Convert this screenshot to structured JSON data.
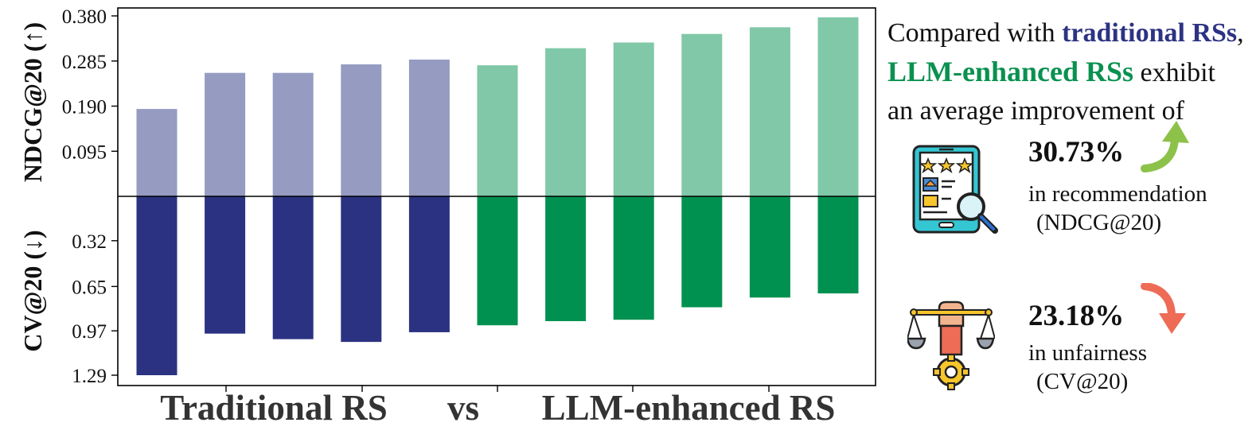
{
  "chart_data": {
    "type": "bar",
    "groups": [
      "Traditional RS",
      "vs",
      "LLM-enhanced RS"
    ],
    "series": [
      {
        "axis_label": "NDCG@20 (↑)",
        "direction": "up",
        "ticks": [
          "0.095",
          "0.190",
          "0.285",
          "0.380"
        ],
        "ylim": [
          0,
          0.38
        ],
        "values": [
          0.184,
          0.26,
          0.26,
          0.278,
          0.288,
          0.276,
          0.312,
          0.324,
          0.342,
          0.356,
          0.377
        ]
      },
      {
        "axis_label": "CV@20 (↓)",
        "direction": "down",
        "ticks": [
          "0.32",
          "0.65",
          "0.97",
          "1.29"
        ],
        "ylim": [
          0,
          1.29
        ],
        "values": [
          1.29,
          0.99,
          1.03,
          1.05,
          0.98,
          0.93,
          0.9,
          0.89,
          0.8,
          0.73,
          0.7
        ]
      }
    ],
    "traditional_count": 5,
    "colors": {
      "traditional_top": "#959bc1",
      "traditional_bottom": "#2b3281",
      "llm_top": "#80c8a7",
      "llm_bottom": "#009150"
    }
  },
  "summary": {
    "line1_prefix": "Compared with ",
    "line1_highlight": "traditional RSs",
    "line1_suffix": ",",
    "line2_highlight": "LLM-enhanced RSs",
    "line2_suffix": " exhibit",
    "line3": "an average improvement of"
  },
  "stats": [
    {
      "icon": "rating-tablet-magnifier-icon",
      "value": "30.73%",
      "label": "in recommendation",
      "metric": "(NDCG@20)",
      "arrow": "up",
      "arrow_color": "#8dc24a"
    },
    {
      "icon": "fairness-scale-icon",
      "value": "23.18%",
      "label": "in unfairness",
      "metric": "(CV@20)",
      "arrow": "down",
      "arrow_color": "#ee6b55"
    }
  ]
}
